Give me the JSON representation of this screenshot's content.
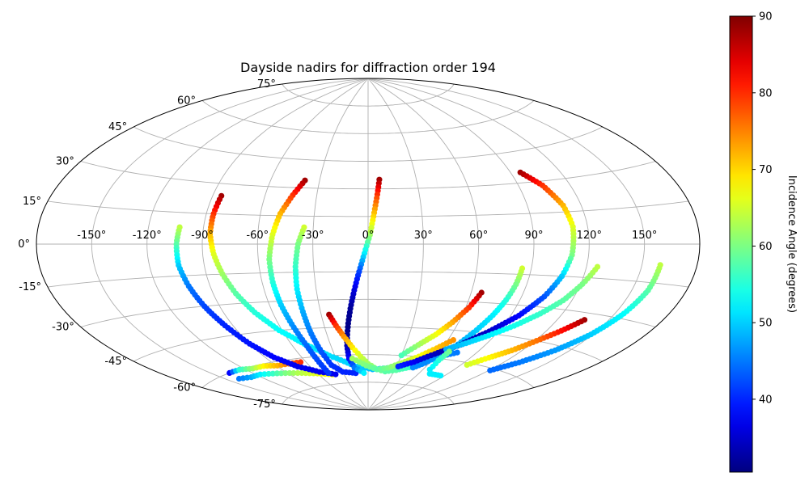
{
  "chart_data": {
    "type": "scatter",
    "projection": "aitoff",
    "title": "Dayside nadirs for diffraction order 194",
    "xlabel": "",
    "ylabel": "",
    "x_ticks": [
      "-150°",
      "-120°",
      "-90°",
      "-60°",
      "-30°",
      "0°",
      "30°",
      "60°",
      "90°",
      "120°",
      "150°"
    ],
    "y_ticks": [
      "75°",
      "60°",
      "45°",
      "30°",
      "15°",
      "0°",
      "-15°",
      "-30°",
      "-45°",
      "-60°",
      "-75°"
    ],
    "grid": true,
    "legend": "none",
    "colorbar": {
      "label": "Incidence Angle (degrees)",
      "colormap": "jet",
      "range": [
        30.5,
        90
      ],
      "ticks": [
        "40",
        "50",
        "60",
        "70",
        "80",
        "90"
      ]
    },
    "series": [
      {
        "points": [
          [
            -137,
            -60,
            38
          ],
          [
            -125,
            -60,
            55
          ],
          [
            -113,
            -61,
            62
          ],
          [
            -101,
            -61,
            68
          ],
          [
            -89,
            -62,
            72
          ],
          [
            -77,
            -62,
            76
          ],
          [
            -65,
            -62,
            80
          ]
        ]
      },
      {
        "points": [
          [
            -140,
            -63,
            45
          ],
          [
            -128,
            -64,
            48
          ],
          [
            -116,
            -64,
            52
          ],
          [
            -104,
            -65,
            56
          ],
          [
            -92,
            -66,
            60
          ],
          [
            -80,
            -67,
            63
          ],
          [
            -68,
            -68,
            65
          ],
          [
            -56,
            -69,
            67
          ],
          [
            -44,
            -70,
            68
          ]
        ]
      },
      {
        "points": [
          [
            -103,
            8,
            64
          ],
          [
            -104,
            0,
            58
          ],
          [
            -104,
            -10,
            50
          ],
          [
            -102,
            -20,
            45
          ],
          [
            -99,
            -30,
            42
          ],
          [
            -95,
            -40,
            40
          ],
          [
            -90,
            -50,
            39
          ],
          [
            -83,
            -58,
            38
          ],
          [
            -72,
            -64,
            37
          ],
          [
            -56,
            -68,
            37
          ],
          [
            -40,
            -70,
            37
          ]
        ]
      },
      {
        "points": [
          [
            -85,
            24,
            88
          ],
          [
            -86,
            15,
            80
          ],
          [
            -86,
            5,
            72
          ],
          [
            -84,
            -5,
            66
          ],
          [
            -81,
            -15,
            62
          ],
          [
            -77,
            -25,
            58
          ],
          [
            -71,
            -35,
            55
          ],
          [
            -62,
            -45,
            53
          ],
          [
            -50,
            -53,
            52
          ],
          [
            -35,
            -60,
            51
          ],
          [
            -15,
            -66,
            50
          ],
          [
            5,
            -68,
            49
          ],
          [
            25,
            -67,
            48
          ],
          [
            45,
            -64,
            47
          ],
          [
            60,
            -60,
            46
          ],
          [
            75,
            -56,
            45
          ]
        ]
      },
      {
        "points": [
          [
            -39,
            34,
            88
          ],
          [
            -44,
            26,
            80
          ],
          [
            -49,
            16,
            72
          ],
          [
            -52,
            5,
            66
          ],
          [
            -54,
            -8,
            60
          ],
          [
            -54,
            -20,
            55
          ],
          [
            -53,
            -32,
            50
          ],
          [
            -51,
            -44,
            46
          ],
          [
            -49,
            -54,
            44
          ],
          [
            -48,
            -63,
            42
          ],
          [
            -47,
            -69,
            41
          ]
        ]
      },
      {
        "points": [
          [
            -35,
            9,
            65
          ],
          [
            -38,
            0,
            60
          ],
          [
            -40,
            -12,
            56
          ],
          [
            -41,
            -24,
            52
          ],
          [
            -41,
            -36,
            48
          ],
          [
            -41,
            -48,
            45
          ],
          [
            -40,
            -58,
            43
          ],
          [
            -38,
            -65,
            41
          ],
          [
            -30,
            -69,
            40
          ],
          [
            -15,
            -70,
            40
          ]
        ]
      },
      {
        "points": [
          [
            7,
            35,
            88
          ],
          [
            5,
            25,
            78
          ],
          [
            3,
            15,
            70
          ],
          [
            1,
            5,
            62
          ],
          [
            -2,
            -5,
            52
          ],
          [
            -5,
            -15,
            42
          ],
          [
            -8,
            -25,
            36
          ],
          [
            -11,
            -35,
            32
          ],
          [
            -14,
            -45,
            31
          ],
          [
            -17,
            -55,
            33
          ],
          [
            -18,
            -62,
            38
          ],
          [
            -15,
            -67,
            45
          ],
          [
            -5,
            -70,
            52
          ]
        ]
      },
      {
        "points": [
          [
            -25,
            -38,
            88
          ],
          [
            -22,
            -44,
            80
          ],
          [
            -18,
            -50,
            74
          ],
          [
            -13,
            -56,
            69
          ],
          [
            -7,
            -61,
            65
          ],
          [
            0,
            -65,
            62
          ],
          [
            10,
            -68,
            60
          ],
          [
            20,
            -69,
            58
          ],
          [
            32,
            -68,
            58
          ],
          [
            44,
            -66,
            56
          ]
        ]
      },
      {
        "points": [
          [
            -15,
            -62,
            62
          ],
          [
            -2,
            -66,
            60
          ],
          [
            10,
            -68,
            58
          ],
          [
            22,
            -67,
            60
          ],
          [
            34,
            -64,
            63
          ],
          [
            46,
            -60,
            67
          ],
          [
            56,
            -55,
            71
          ],
          [
            64,
            -50,
            74
          ]
        ]
      },
      {
        "points": [
          [
            66,
            -25,
            88
          ],
          [
            62,
            -33,
            80
          ],
          [
            56,
            -41,
            73
          ],
          [
            49,
            -48,
            67
          ],
          [
            40,
            -54,
            62
          ],
          [
            30,
            -60,
            57
          ]
        ]
      },
      {
        "points": [
          [
            85,
            -12,
            65
          ],
          [
            84,
            -20,
            60
          ],
          [
            82,
            -28,
            55
          ],
          [
            79,
            -36,
            52
          ],
          [
            75,
            -44,
            50
          ],
          [
            70,
            -52,
            48
          ],
          [
            64,
            -58,
            47
          ],
          [
            56,
            -63,
            46
          ],
          [
            48,
            -66,
            46
          ]
        ]
      },
      {
        "points": [
          [
            96,
            35,
            88
          ],
          [
            104,
            28,
            80
          ],
          [
            110,
            18,
            72
          ],
          [
            112,
            8,
            66
          ],
          [
            111,
            -5,
            60
          ],
          [
            108,
            -15,
            50
          ],
          [
            103,
            -25,
            43
          ],
          [
            95,
            -35,
            38
          ],
          [
            84,
            -44,
            35
          ],
          [
            72,
            -52,
            33
          ],
          [
            58,
            -58,
            34
          ],
          [
            45,
            -63,
            37
          ],
          [
            32,
            -66,
            40
          ]
        ]
      },
      {
        "points": [
          [
            126,
            -10,
            64
          ],
          [
            121,
            -18,
            60
          ],
          [
            115,
            -26,
            58
          ],
          [
            107,
            -33,
            56
          ],
          [
            97,
            -40,
            54
          ],
          [
            86,
            -46,
            52
          ],
          [
            75,
            -51,
            50
          ],
          [
            64,
            -55,
            48
          ]
        ]
      },
      {
        "points": [
          [
            136,
            -33,
            88
          ],
          [
            129,
            -39,
            82
          ],
          [
            121,
            -45,
            76
          ],
          [
            113,
            -51,
            72
          ],
          [
            104,
            -56,
            68
          ],
          [
            95,
            -61,
            65
          ]
        ]
      },
      {
        "points": [
          [
            160,
            -8,
            64
          ],
          [
            159,
            -18,
            58
          ],
          [
            155,
            -28,
            53
          ],
          [
            149,
            -38,
            50
          ],
          [
            141,
            -47,
            47
          ],
          [
            131,
            -55,
            45
          ],
          [
            121,
            -61,
            44
          ]
        ]
      },
      {
        "points": [
          [
            68,
            -56,
            60
          ],
          [
            66,
            -61,
            55
          ],
          [
            67,
            -66,
            52
          ],
          [
            72,
            -68,
            52
          ],
          [
            79,
            -68,
            52
          ],
          [
            86,
            -68,
            52
          ]
        ]
      }
    ]
  }
}
